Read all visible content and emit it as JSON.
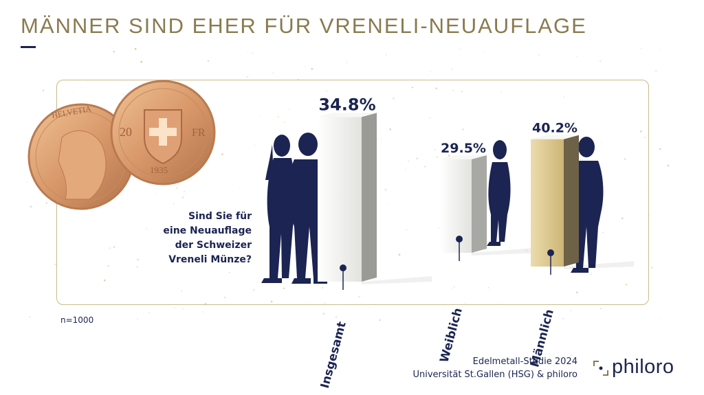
{
  "title": "MÄNNER SIND EHER FÜR VRENELI-NEUAUFLAGE",
  "question_lines": [
    "Sind Sie für",
    "eine Neuauflage",
    "der Schweizer",
    "Vreneli Münze?"
  ],
  "sample_note": "n=1000",
  "credit_lines": [
    "Edelmetall-Studie 2024",
    "Universität St.Gallen (HSG) & philoro"
  ],
  "brand": "philoro",
  "coin": {
    "country": "HELVETIA",
    "value": "20",
    "unit": "FR",
    "year": "1935"
  },
  "colors": {
    "gold": "#8a7a50",
    "navy": "#1b2452",
    "bar_gold": "#d9c48c",
    "bar_white": "#efefec"
  },
  "chart_data": {
    "type": "bar",
    "categories": [
      "Insgesamt",
      "Weiblich",
      "Männlich"
    ],
    "values": [
      34.8,
      29.5,
      40.2
    ],
    "value_labels": [
      "34.8%",
      "29.5%",
      "40.2%"
    ],
    "unit": "%"
  }
}
